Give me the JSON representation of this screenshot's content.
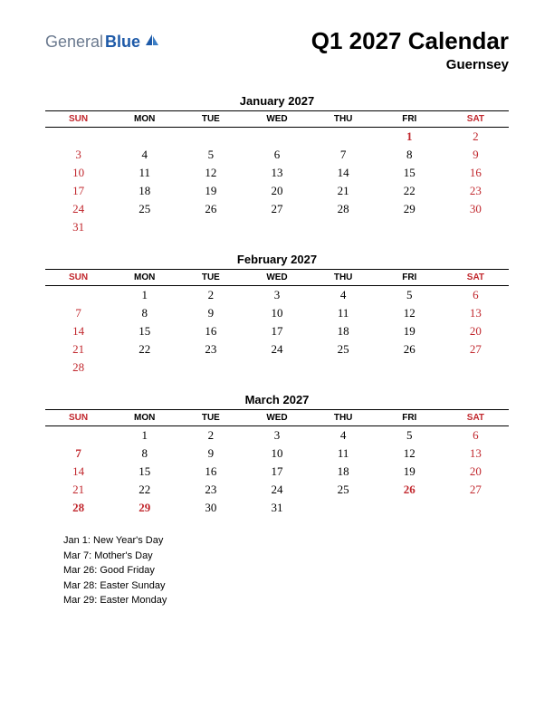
{
  "logo": {
    "part1": "General",
    "part2": "Blue",
    "icon_color": "#1e5aa8"
  },
  "title": "Q1 2027 Calendar",
  "subtitle": "Guernsey",
  "day_headers": [
    "SUN",
    "MON",
    "TUE",
    "WED",
    "THU",
    "FRI",
    "SAT"
  ],
  "weekend_cols": [
    0,
    6
  ],
  "colors": {
    "weekend": "#c1272d",
    "text": "#000000",
    "border": "#000000",
    "background": "#ffffff"
  },
  "typography": {
    "title_fontsize": 26,
    "subtitle_fontsize": 15,
    "month_title_fontsize": 13,
    "header_fontsize": 10,
    "cell_fontsize": 13,
    "holiday_fontsize": 11
  },
  "months": [
    {
      "title": "January 2027",
      "weeks": [
        [
          "",
          "",
          "",
          "",
          "",
          "1",
          "2"
        ],
        [
          "3",
          "4",
          "5",
          "6",
          "7",
          "8",
          "9"
        ],
        [
          "10",
          "11",
          "12",
          "13",
          "14",
          "15",
          "16"
        ],
        [
          "17",
          "18",
          "19",
          "20",
          "21",
          "22",
          "23"
        ],
        [
          "24",
          "25",
          "26",
          "27",
          "28",
          "29",
          "30"
        ],
        [
          "31",
          "",
          "",
          "",
          "",
          "",
          ""
        ]
      ],
      "holiday_cells": [
        [
          0,
          5
        ]
      ]
    },
    {
      "title": "February 2027",
      "weeks": [
        [
          "",
          "1",
          "2",
          "3",
          "4",
          "5",
          "6"
        ],
        [
          "7",
          "8",
          "9",
          "10",
          "11",
          "12",
          "13"
        ],
        [
          "14",
          "15",
          "16",
          "17",
          "18",
          "19",
          "20"
        ],
        [
          "21",
          "22",
          "23",
          "24",
          "25",
          "26",
          "27"
        ],
        [
          "28",
          "",
          "",
          "",
          "",
          "",
          ""
        ]
      ],
      "holiday_cells": []
    },
    {
      "title": "March 2027",
      "weeks": [
        [
          "",
          "1",
          "2",
          "3",
          "4",
          "5",
          "6"
        ],
        [
          "7",
          "8",
          "9",
          "10",
          "11",
          "12",
          "13"
        ],
        [
          "14",
          "15",
          "16",
          "17",
          "18",
          "19",
          "20"
        ],
        [
          "21",
          "22",
          "23",
          "24",
          "25",
          "26",
          "27"
        ],
        [
          "28",
          "29",
          "30",
          "31",
          "",
          "",
          ""
        ]
      ],
      "holiday_cells": [
        [
          1,
          0
        ],
        [
          3,
          5
        ],
        [
          4,
          0
        ],
        [
          4,
          1
        ]
      ]
    }
  ],
  "holidays": [
    "Jan 1: New Year's Day",
    "Mar 7: Mother's Day",
    "Mar 26: Good Friday",
    "Mar 28: Easter Sunday",
    "Mar 29: Easter Monday"
  ]
}
